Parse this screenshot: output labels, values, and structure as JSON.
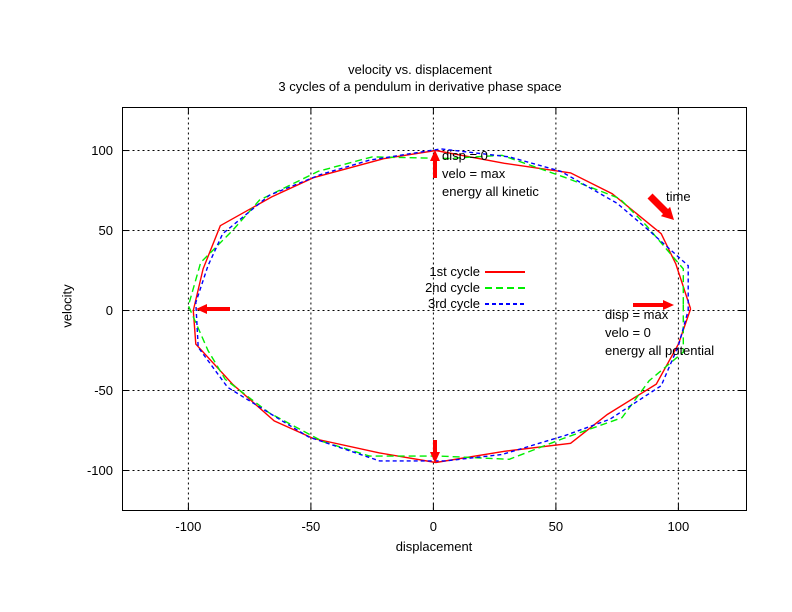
{
  "chart_data": {
    "type": "line",
    "title": "velocity vs. displacement",
    "subtitle": "3 cycles of a pendulum in derivative phase space",
    "xlabel": "displacement",
    "ylabel": "velocity",
    "xlim": [
      -126.9,
      127.8
    ],
    "ylim": [
      -125.0,
      126.9
    ],
    "xticks": [
      -100,
      -50,
      0,
      50,
      100
    ],
    "yticks": [
      -100,
      -50,
      0,
      50,
      100
    ],
    "grid": true,
    "legend_position": "center-of-plot",
    "text_color": "#000000",
    "series": [
      {
        "name": "1st cycle",
        "color": "#ff0000",
        "dash": "",
        "points": [
          [
            105,
            1
          ],
          [
            99,
            29
          ],
          [
            93,
            48
          ],
          [
            73,
            73
          ],
          [
            56,
            86
          ],
          [
            29,
            92
          ],
          [
            1,
            100
          ],
          [
            -20,
            95
          ],
          [
            -49,
            83
          ],
          [
            -66,
            71
          ],
          [
            -87,
            53
          ],
          [
            -94,
            26
          ],
          [
            -98,
            0
          ],
          [
            -97,
            -21
          ],
          [
            -82,
            -46
          ],
          [
            -65,
            -69
          ],
          [
            -49,
            -80
          ],
          [
            -22,
            -89
          ],
          [
            1,
            -95
          ],
          [
            29,
            -88
          ],
          [
            56,
            -83
          ],
          [
            71,
            -65
          ],
          [
            91,
            -46
          ],
          [
            100,
            -21
          ],
          [
            105,
            1
          ]
        ]
      },
      {
        "name": "2nd cycle",
        "color": "#00ee00",
        "dash": "7,4",
        "points": [
          [
            102,
            4
          ],
          [
            102,
            26
          ],
          [
            87,
            53
          ],
          [
            76,
            70
          ],
          [
            54,
            83
          ],
          [
            28,
            97
          ],
          [
            6,
            95
          ],
          [
            -25,
            96
          ],
          [
            -47,
            87
          ],
          [
            -71,
            69
          ],
          [
            -82,
            50
          ],
          [
            -95,
            30
          ],
          [
            -100,
            3
          ],
          [
            -92,
            -25
          ],
          [
            -85,
            -43
          ],
          [
            -67,
            -64
          ],
          [
            -45,
            -82
          ],
          [
            -26,
            -91
          ],
          [
            3,
            -91
          ],
          [
            31,
            -93
          ],
          [
            53,
            -80
          ],
          [
            77,
            -67
          ],
          [
            88,
            -44
          ],
          [
            102,
            -26
          ],
          [
            102,
            4
          ]
        ]
      },
      {
        "name": "3rd cycle",
        "color": "#0000ff",
        "dash": "4,3",
        "points": [
          [
            104,
            0
          ],
          [
            104,
            28
          ],
          [
            88,
            50
          ],
          [
            75,
            67
          ],
          [
            52,
            87
          ],
          [
            31,
            96
          ],
          [
            3,
            101
          ],
          [
            -26,
            94
          ],
          [
            -46,
            85
          ],
          [
            -67,
            72
          ],
          [
            -86,
            48
          ],
          [
            -92,
            28
          ],
          [
            -97,
            5
          ],
          [
            -96,
            -23
          ],
          [
            -84,
            -48
          ],
          [
            -66,
            -65
          ],
          [
            -51,
            -79
          ],
          [
            -22,
            -94
          ],
          [
            5,
            -94
          ],
          [
            28,
            -90
          ],
          [
            54,
            -78
          ],
          [
            72,
            -68
          ],
          [
            93,
            -47
          ],
          [
            100,
            -22
          ],
          [
            104,
            0
          ]
        ]
      }
    ],
    "arrows": [
      {
        "name": "marker-top",
        "color": "#ff0000",
        "from": [
          435,
          178
        ],
        "to": [
          435,
          150
        ],
        "shaft": 4,
        "head_w": 10,
        "head_l": 11
      },
      {
        "name": "marker-bottom",
        "color": "#ff0000",
        "from": [
          435,
          440
        ],
        "to": [
          435,
          463
        ],
        "shaft": 4,
        "head_w": 10,
        "head_l": 11
      },
      {
        "name": "marker-left",
        "color": "#ff0000",
        "from": [
          230,
          309
        ],
        "to": [
          196,
          309
        ],
        "shaft": 4,
        "head_w": 10,
        "head_l": 11
      },
      {
        "name": "marker-right",
        "color": "#ff0000",
        "from": [
          633,
          305
        ],
        "to": [
          674,
          305
        ],
        "shaft": 4,
        "head_w": 10,
        "head_l": 11
      },
      {
        "name": "time-arrow",
        "color": "#ff0000",
        "from": [
          650,
          196
        ],
        "to": [
          674,
          220
        ],
        "shaft": 7,
        "head_w": 13,
        "head_l": 12
      }
    ],
    "annotations": {
      "kinetic": {
        "text": "disp = 0\nvelo = max\nenergy all kinetic"
      },
      "potential": {
        "text": "disp = max\nvelo = 0\nenergy all potential"
      },
      "time": {
        "text": "time"
      }
    }
  }
}
